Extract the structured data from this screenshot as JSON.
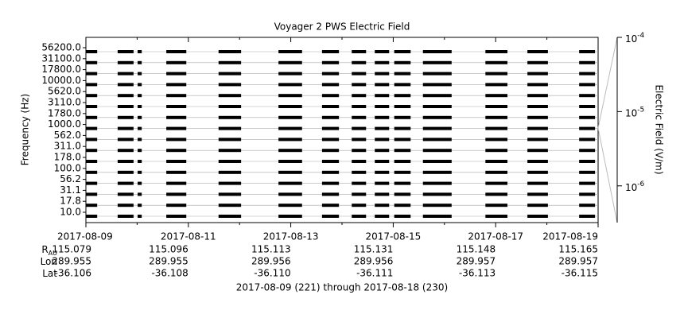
{
  "chart_data": {
    "type": "timeline",
    "title": "Voyager 2 PWS Electric Field",
    "ylabel": "Frequency (Hz)",
    "y2label": "Electric Field (V/m)",
    "channels": [
      {
        "value": 10,
        "label": "10.0"
      },
      {
        "value": 17.8,
        "label": "17.8"
      },
      {
        "value": 31.1,
        "label": "31.1"
      },
      {
        "value": 56.2,
        "label": "56.2"
      },
      {
        "value": 100,
        "label": "100.0"
      },
      {
        "value": 178,
        "label": "178.0"
      },
      {
        "value": 311,
        "label": "311.0"
      },
      {
        "value": 562,
        "label": "562.0"
      },
      {
        "value": 1000,
        "label": "1000.0"
      },
      {
        "value": 1780,
        "label": "1780.0"
      },
      {
        "value": 3110,
        "label": "3110.0"
      },
      {
        "value": 5620,
        "label": "5620.0"
      },
      {
        "value": 10000,
        "label": "10000.0"
      },
      {
        "value": 17800,
        "label": "17800.0"
      },
      {
        "value": 31100,
        "label": "31100.0"
      },
      {
        "value": 56200,
        "label": "56200.0"
      }
    ],
    "xlim": [
      0,
      10
    ],
    "xticks": [
      {
        "value": 0,
        "label": "2017-08-09"
      },
      {
        "value": 2,
        "label": "2017-08-11"
      },
      {
        "value": 4,
        "label": "2017-08-13"
      },
      {
        "value": 6,
        "label": "2017-08-15"
      },
      {
        "value": 8,
        "label": "2017-08-17"
      },
      {
        "value": 10,
        "label": "2017-08-19"
      }
    ],
    "xminor": [
      1,
      3,
      5,
      7,
      9
    ],
    "segments": [
      [
        0,
        0.22
      ],
      [
        0.62,
        0.93
      ],
      [
        1.01,
        1.09
      ],
      [
        1.57,
        1.96
      ],
      [
        2.59,
        3.03
      ],
      [
        3.76,
        4.22
      ],
      [
        4.61,
        4.94
      ],
      [
        5.19,
        5.47
      ],
      [
        5.64,
        5.92
      ],
      [
        6.02,
        6.34
      ],
      [
        6.58,
        7.14
      ],
      [
        7.8,
        8.23
      ],
      [
        8.62,
        9.02
      ],
      [
        9.63,
        9.94
      ]
    ],
    "color": "#000000",
    "grid": true,
    "zlim": [
      3.2e-07,
      0.0001
    ],
    "zscale": "log",
    "zticks": [
      {
        "value": 0.0001,
        "base": "10",
        "exponent": "-4"
      },
      {
        "value": 1e-05,
        "base": "10",
        "exponent": "-5"
      },
      {
        "value": 1e-06,
        "base": "10",
        "exponent": "-6"
      }
    ],
    "ephemeris": [
      {
        "label": "R",
        "sub": "AU",
        "values": [
          "115.079",
          "115.096",
          "115.113",
          "115.131",
          "115.148",
          "115.165"
        ]
      },
      {
        "label": "Lon",
        "values": [
          "289.955",
          "289.955",
          "289.956",
          "289.956",
          "289.957",
          "289.957"
        ]
      },
      {
        "label": "Lat",
        "values": [
          "-36.106",
          "-36.108",
          "-36.110",
          "-36.111",
          "-36.113",
          "-36.115"
        ]
      }
    ],
    "footer": "2017-08-09 (221) through 2017-08-18 (230)"
  }
}
